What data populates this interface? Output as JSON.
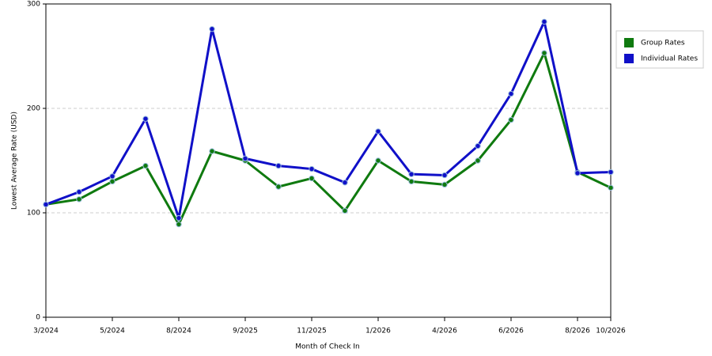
{
  "chart_data": {
    "type": "line",
    "x_label": "Month of Check In",
    "y_label": "Lowest Average Rate (USD)",
    "categories": [
      "3/2024",
      null,
      "5/2024",
      null,
      "8/2024",
      null,
      "9/2025",
      null,
      "11/2025",
      null,
      "1/2026",
      null,
      "4/2026",
      null,
      "6/2026",
      null,
      "8/2026",
      "10/2026"
    ],
    "series": [
      {
        "name": "Group Rates",
        "color": "#0f7a0f",
        "values": [
          108,
          113,
          130,
          145,
          89,
          159,
          150,
          125,
          133,
          102,
          150,
          130,
          127,
          150,
          189,
          253,
          139,
          124
        ]
      },
      {
        "name": "Individual Rates",
        "color": "#1010c8",
        "values": [
          108,
          120,
          135,
          190,
          95,
          276,
          152,
          145,
          142,
          129,
          178,
          137,
          136,
          164,
          214,
          283,
          138,
          139
        ]
      }
    ],
    "ylim": [
      0,
      300
    ],
    "yticks": [
      0,
      100,
      200,
      300
    ],
    "grid": true,
    "legend": "right"
  }
}
